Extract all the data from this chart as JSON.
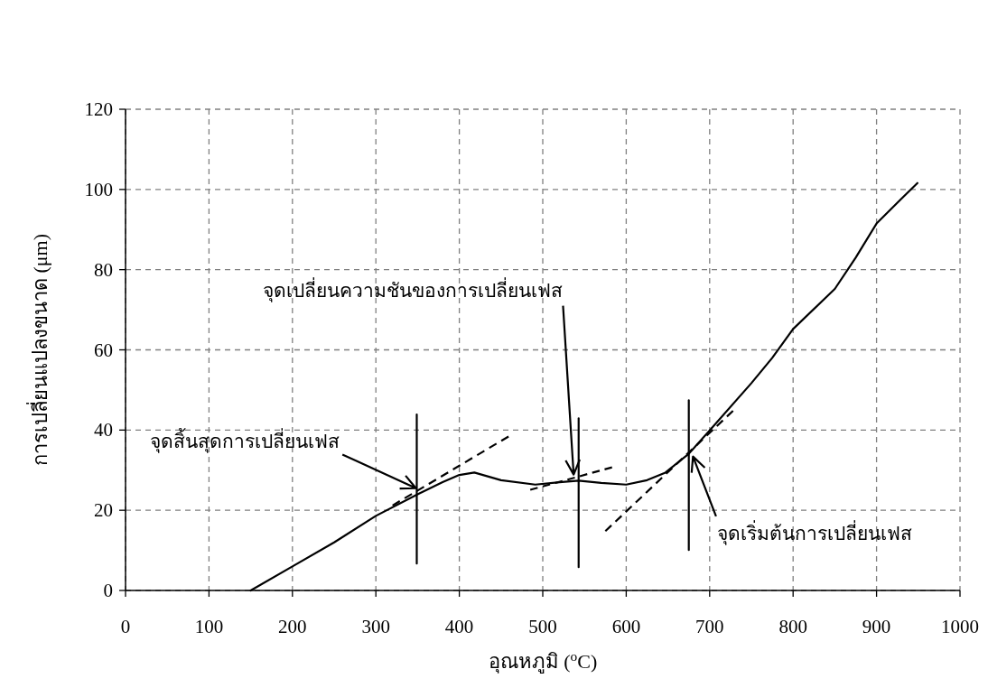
{
  "chart_data": {
    "type": "line",
    "xlabel": "อุณหภูมิ ($^{o}$C)",
    "ylabel": "การเปลี่ยนแปลงขนาด (μm)",
    "xlim": [
      0,
      1000
    ],
    "xticks": [
      0,
      100,
      200,
      300,
      400,
      500,
      600,
      700,
      800,
      900,
      1000
    ],
    "ylim": [
      0,
      120
    ],
    "yticks": [
      0,
      20,
      40,
      60,
      80,
      100,
      120
    ],
    "grid": true,
    "series": [
      {
        "type": "line",
        "color": "#000000",
        "line_style": "solid",
        "x": [
          150,
          200,
          250,
          300,
          350,
          380,
          400,
          418,
          450,
          491,
          520,
          543,
          570,
          600,
          625,
          647,
          675,
          700,
          750,
          775,
          800,
          850,
          875,
          900,
          928,
          949
        ],
        "values": [
          0,
          6,
          12,
          18.6,
          24,
          27,
          28.8,
          29.4,
          27.5,
          26.4,
          27,
          27.4,
          26.8,
          26.4,
          27.5,
          29.4,
          34.1,
          39.9,
          51.7,
          58,
          65.2,
          75.2,
          83,
          91.5,
          97.3,
          101.6
        ]
      },
      {
        "type": "line",
        "color": "#000000",
        "line_style": "solid",
        "x": [
          349,
          349
        ],
        "values": [
          43.9,
          6.7
        ]
      },
      {
        "type": "line",
        "color": "#000000",
        "line_style": "solid",
        "x": [
          543,
          543
        ],
        "values": [
          42.9,
          5.8
        ]
      },
      {
        "type": "line",
        "color": "#000000",
        "line_style": "solid",
        "x": [
          675,
          675
        ],
        "values": [
          47.4,
          10.1
        ]
      },
      {
        "type": "line",
        "color": "#000000",
        "line_style": "dashed",
        "x": [
          320,
          459
        ],
        "values": [
          21.2,
          38.4
        ]
      },
      {
        "type": "line",
        "color": "#000000",
        "line_style": "dashed",
        "x": [
          485,
          583
        ],
        "values": [
          25.1,
          30.7
        ]
      },
      {
        "type": "line",
        "color": "#000000",
        "line_style": "dashed",
        "x": [
          575,
          728
        ],
        "values": [
          14.8,
          44.8
        ]
      }
    ],
    "annotations": [
      {
        "text": "จุดสิ้นสุดการเปลี่ยนเฟส",
        "x": 348,
        "y": 25.5
      },
      {
        "text": "จุดเปลี่ยนความชันของการเปลี่ยนเฟส",
        "x": 537,
        "y": 28.9
      },
      {
        "text": "จุดเริ่มต้นการเปลี่ยนเฟส",
        "x": 680,
        "y": 33.4
      }
    ]
  }
}
